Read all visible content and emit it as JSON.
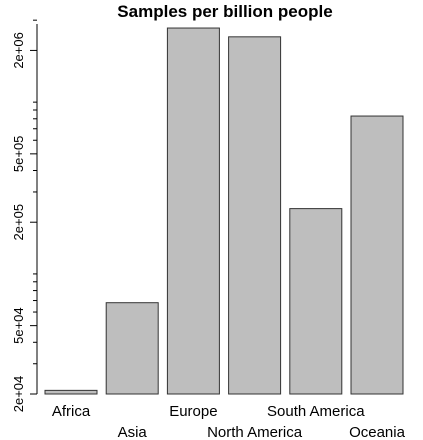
{
  "chart_data": {
    "type": "bar",
    "title": "Samples per billion people",
    "xlabel": "",
    "ylabel": "",
    "scale": "log",
    "categories": [
      "Africa",
      "Asia",
      "Europe",
      "North America",
      "South America",
      "Oceania"
    ],
    "values": [
      21000,
      68000,
      2700000,
      2400000,
      240000,
      830000
    ],
    "ylim": [
      20000,
      2850000
    ],
    "major_ticks": [
      20000,
      50000,
      200000,
      500000,
      2000000
    ],
    "major_tick_labels": [
      "2e+04",
      "5e+04",
      "2e+05",
      "5e+05",
      "2e+06"
    ],
    "minor_ticks": [
      30000,
      40000,
      60000,
      70000,
      80000,
      90000,
      100000,
      300000,
      400000,
      600000,
      700000,
      800000,
      900000,
      1000000,
      3000000
    ],
    "bar_color": "#bebebe",
    "grid": false,
    "legend": "none"
  }
}
